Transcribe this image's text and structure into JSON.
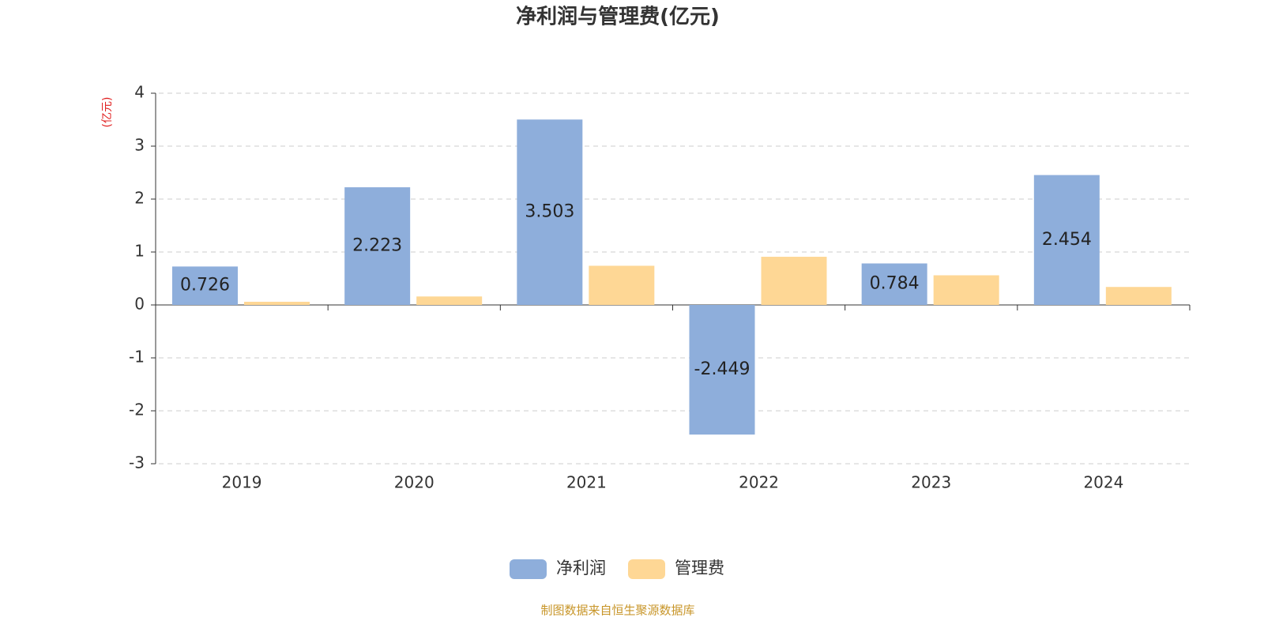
{
  "chart_data": {
    "type": "bar",
    "title": "净利润与管理费(亿元)",
    "y_label": "(亿元)",
    "categories": [
      "2019",
      "2020",
      "2021",
      "2022",
      "2023",
      "2024"
    ],
    "series": [
      {
        "name": "净利润",
        "color": "#8eaedb",
        "values": [
          0.726,
          2.223,
          3.503,
          -2.449,
          0.784,
          2.454
        ]
      },
      {
        "name": "管理费",
        "color": "#fed795",
        "values": [
          0.06,
          0.16,
          0.74,
          0.91,
          0.56,
          0.34
        ]
      }
    ],
    "ylim": [
      -3,
      4
    ],
    "yticks": [
      -3,
      -2,
      -1,
      0,
      1,
      2,
      3,
      4
    ],
    "grid": true,
    "legend": "bottom",
    "note": "制图数据来自恒生聚源数据库"
  }
}
